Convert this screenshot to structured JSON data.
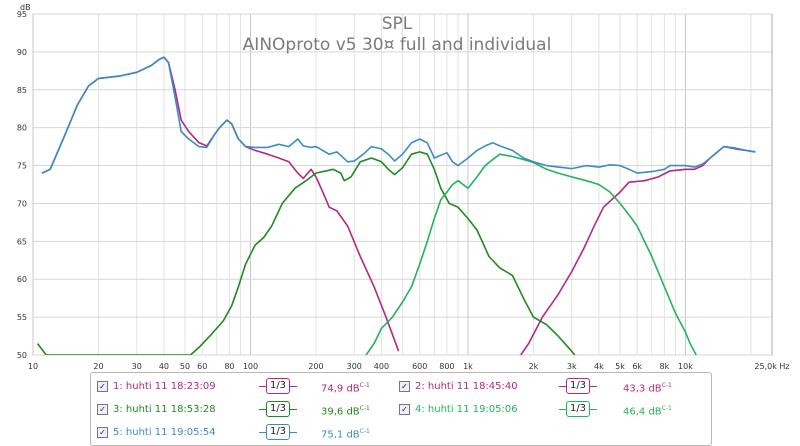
{
  "title": "SPL",
  "subtitle": "AINOproto v5 30¤ full and individual",
  "chart_data": {
    "type": "line",
    "title": "SPL",
    "subtitle": "AINOproto v5 30¤ full and individual",
    "xscale": "log",
    "xlim": [
      10,
      25000
    ],
    "ylim": [
      50,
      95
    ],
    "ylabel": "dB",
    "xunit": "Hz",
    "grid": true,
    "xticks": [
      {
        "v": 10,
        "label": "10"
      },
      {
        "v": 20,
        "label": "20"
      },
      {
        "v": 30,
        "label": "30"
      },
      {
        "v": 40,
        "label": "40"
      },
      {
        "v": 50,
        "label": "50"
      },
      {
        "v": 60,
        "label": "60"
      },
      {
        "v": 80,
        "label": "80"
      },
      {
        "v": 100,
        "label": "100"
      },
      {
        "v": 200,
        "label": "200"
      },
      {
        "v": 300,
        "label": "300"
      },
      {
        "v": 400,
        "label": "400"
      },
      {
        "v": 600,
        "label": "600"
      },
      {
        "v": 800,
        "label": "800"
      },
      {
        "v": 1000,
        "label": "1k"
      },
      {
        "v": 2000,
        "label": "2k"
      },
      {
        "v": 3000,
        "label": "3k"
      },
      {
        "v": 4000,
        "label": "4k"
      },
      {
        "v": 5000,
        "label": "5k"
      },
      {
        "v": 6000,
        "label": "6k"
      },
      {
        "v": 8000,
        "label": "8k"
      },
      {
        "v": 10000,
        "label": "10k"
      },
      {
        "v": 25000,
        "label": "25,0k Hz"
      }
    ],
    "yticks": [
      50,
      55,
      60,
      65,
      70,
      75,
      80,
      85,
      90,
      95
    ],
    "series": [
      {
        "name": "1: huhti 11 18:23:09",
        "color": "#b5287d",
        "smoothing": "1/3",
        "level": "74,9 dB",
        "points": [
          [
            11,
            74
          ],
          [
            12,
            74.5
          ],
          [
            14,
            79
          ],
          [
            16,
            83
          ],
          [
            18,
            85.5
          ],
          [
            20,
            86.5
          ],
          [
            25,
            86.8
          ],
          [
            30,
            87.3
          ],
          [
            35,
            88.2
          ],
          [
            38,
            89
          ],
          [
            40,
            89.3
          ],
          [
            42,
            88.6
          ],
          [
            45,
            85
          ],
          [
            48,
            81
          ],
          [
            52,
            79.5
          ],
          [
            58,
            78
          ],
          [
            63,
            77.6
          ],
          [
            68,
            79
          ],
          [
            72,
            80
          ],
          [
            78,
            81
          ],
          [
            82,
            80.5
          ],
          [
            88,
            78.5
          ],
          [
            95,
            77.5
          ],
          [
            105,
            77
          ],
          [
            120,
            76.5
          ],
          [
            135,
            76
          ],
          [
            150,
            75.5
          ],
          [
            165,
            74
          ],
          [
            175,
            73.3
          ],
          [
            190,
            74.5
          ],
          [
            200,
            73.5
          ],
          [
            215,
            71.5
          ],
          [
            230,
            69.5
          ],
          [
            250,
            69
          ],
          [
            280,
            67
          ],
          [
            320,
            63
          ],
          [
            370,
            59
          ],
          [
            420,
            55
          ],
          [
            480,
            50.5
          ]
        ]
      },
      {
        "name": "2: huhti 11 18:45:40",
        "color": "#b5287d",
        "smoothing": "1/3",
        "level": "43,3 dB",
        "points": [
          [
            1750,
            50
          ],
          [
            1900,
            51.5
          ],
          [
            2200,
            55
          ],
          [
            2600,
            58
          ],
          [
            3000,
            61
          ],
          [
            3400,
            64
          ],
          [
            3800,
            67
          ],
          [
            4200,
            69.5
          ],
          [
            5000,
            71.5
          ],
          [
            5500,
            72.8
          ],
          [
            6500,
            73
          ],
          [
            7500,
            73.5
          ],
          [
            8500,
            74.3
          ],
          [
            10000,
            74.5
          ],
          [
            11000,
            74.5
          ],
          [
            12000,
            75
          ],
          [
            13000,
            76
          ],
          [
            15000,
            77.5
          ],
          [
            17000,
            77.2
          ],
          [
            19000,
            77
          ],
          [
            21000,
            76.8
          ]
        ]
      },
      {
        "name": "3: huhti 11 18:53:28",
        "color": "#1f8a1f",
        "smoothing": "1/3",
        "level": "39,6 dB",
        "points": [
          [
            10.5,
            51.5
          ],
          [
            11.5,
            50
          ],
          [
            53,
            50
          ],
          [
            58,
            51
          ],
          [
            65,
            52.5
          ],
          [
            75,
            54.5
          ],
          [
            82,
            56.5
          ],
          [
            88,
            59
          ],
          [
            95,
            62
          ],
          [
            105,
            64.5
          ],
          [
            115,
            65.5
          ],
          [
            125,
            67
          ],
          [
            140,
            70
          ],
          [
            160,
            72
          ],
          [
            180,
            73
          ],
          [
            200,
            74
          ],
          [
            240,
            74.5
          ],
          [
            260,
            74
          ],
          [
            270,
            73
          ],
          [
            290,
            73.5
          ],
          [
            320,
            75.5
          ],
          [
            360,
            76
          ],
          [
            400,
            75.5
          ],
          [
            430,
            74.5
          ],
          [
            460,
            73.8
          ],
          [
            500,
            74.7
          ],
          [
            550,
            76.5
          ],
          [
            600,
            76.8
          ],
          [
            650,
            76.5
          ],
          [
            700,
            74.5
          ],
          [
            750,
            72
          ],
          [
            820,
            70
          ],
          [
            900,
            69.5
          ],
          [
            1000,
            68
          ],
          [
            1100,
            66.5
          ],
          [
            1250,
            63
          ],
          [
            1400,
            61.5
          ],
          [
            1600,
            60.5
          ],
          [
            1800,
            57.5
          ],
          [
            2000,
            55
          ],
          [
            2300,
            54
          ],
          [
            2600,
            52.5
          ],
          [
            3000,
            50.5
          ],
          [
            3100,
            50
          ]
        ]
      },
      {
        "name": "4: huhti 11 19:05:06",
        "color": "#22b45a",
        "smoothing": "1/3",
        "level": "46,4 dB",
        "points": [
          [
            340,
            50
          ],
          [
            370,
            51.5
          ],
          [
            400,
            53.5
          ],
          [
            450,
            55
          ],
          [
            500,
            57
          ],
          [
            550,
            59
          ],
          [
            600,
            62
          ],
          [
            650,
            65
          ],
          [
            700,
            68
          ],
          [
            750,
            70.5
          ],
          [
            800,
            71.5
          ],
          [
            850,
            72.5
          ],
          [
            900,
            73
          ],
          [
            950,
            72.5
          ],
          [
            1000,
            72
          ],
          [
            1100,
            73.5
          ],
          [
            1200,
            75
          ],
          [
            1300,
            75.8
          ],
          [
            1400,
            76.5
          ],
          [
            1600,
            76.2
          ],
          [
            1800,
            75.8
          ],
          [
            2000,
            75.4
          ],
          [
            2300,
            74.5
          ],
          [
            2600,
            74
          ],
          [
            3000,
            73.5
          ],
          [
            3500,
            73
          ],
          [
            4000,
            72.5
          ],
          [
            4500,
            71.5
          ],
          [
            5000,
            70
          ],
          [
            5500,
            68.5
          ],
          [
            6000,
            67
          ],
          [
            7000,
            63
          ],
          [
            8000,
            59
          ],
          [
            9000,
            55.5
          ],
          [
            10000,
            53
          ],
          [
            10500,
            51.5
          ],
          [
            11200,
            50
          ]
        ]
      },
      {
        "name": "5: huhti 11 19:05:54",
        "color": "#3a8dc4",
        "smoothing": "1/3",
        "level": "75,1 dB",
        "points": [
          [
            11,
            74
          ],
          [
            12,
            74.5
          ],
          [
            14,
            79
          ],
          [
            16,
            83
          ],
          [
            18,
            85.5
          ],
          [
            20,
            86.5
          ],
          [
            25,
            86.8
          ],
          [
            30,
            87.3
          ],
          [
            35,
            88.2
          ],
          [
            38,
            89
          ],
          [
            40,
            89.3
          ],
          [
            42,
            88.6
          ],
          [
            45,
            84
          ],
          [
            48,
            79.5
          ],
          [
            52,
            78.5
          ],
          [
            58,
            77.5
          ],
          [
            63,
            77.4
          ],
          [
            68,
            79
          ],
          [
            72,
            80
          ],
          [
            78,
            81
          ],
          [
            82,
            80.5
          ],
          [
            88,
            78.5
          ],
          [
            95,
            77.5
          ],
          [
            105,
            77.4
          ],
          [
            120,
            77.4
          ],
          [
            135,
            77.8
          ],
          [
            150,
            77.5
          ],
          [
            165,
            78.5
          ],
          [
            175,
            77.6
          ],
          [
            190,
            77.4
          ],
          [
            200,
            77.5
          ],
          [
            230,
            76.5
          ],
          [
            250,
            76.8
          ],
          [
            280,
            75.5
          ],
          [
            300,
            75.6
          ],
          [
            330,
            76.5
          ],
          [
            360,
            77.5
          ],
          [
            400,
            77.2
          ],
          [
            430,
            76.5
          ],
          [
            460,
            75.6
          ],
          [
            500,
            76.5
          ],
          [
            550,
            78
          ],
          [
            600,
            78.5
          ],
          [
            650,
            78
          ],
          [
            700,
            76
          ],
          [
            800,
            76.7
          ],
          [
            850,
            75.5
          ],
          [
            900,
            75
          ],
          [
            1000,
            76
          ],
          [
            1100,
            77
          ],
          [
            1200,
            77.6
          ],
          [
            1300,
            78
          ],
          [
            1400,
            77.6
          ],
          [
            1600,
            77
          ],
          [
            1800,
            76
          ],
          [
            2000,
            75.5
          ],
          [
            2300,
            75
          ],
          [
            2600,
            74.8
          ],
          [
            3000,
            74.6
          ],
          [
            3500,
            75
          ],
          [
            4000,
            74.8
          ],
          [
            4500,
            75.1
          ],
          [
            5000,
            75
          ],
          [
            5500,
            74.5
          ],
          [
            6000,
            74
          ],
          [
            7000,
            74.2
          ],
          [
            8000,
            74.5
          ],
          [
            8500,
            75
          ],
          [
            10000,
            75
          ],
          [
            11000,
            74.8
          ],
          [
            12000,
            75.2
          ],
          [
            13000,
            76
          ],
          [
            15000,
            77.5
          ],
          [
            17000,
            77.3
          ],
          [
            19000,
            77
          ],
          [
            21000,
            76.8
          ]
        ]
      }
    ]
  },
  "legend": {
    "items": [
      {
        "label": "1: huhti 11 18:23:09",
        "smoothing": "1/3",
        "level": "74,9 dB",
        "unit_sup": "C-1",
        "color": "#b5287d",
        "checked": "✓"
      },
      {
        "label": "2: huhti 11 18:45:40",
        "smoothing": "1/3",
        "level": "43,3 dB",
        "unit_sup": "C-1",
        "color": "#b5287d",
        "checked": "✓"
      },
      {
        "label": "3: huhti 11 18:53:28",
        "smoothing": "1/3",
        "level": "39,6 dB",
        "unit_sup": "C-1",
        "color": "#1f8a1f",
        "checked": "✓"
      },
      {
        "label": "4: huhti 11 19:05:06",
        "smoothing": "1/3",
        "level": "46,4 dB",
        "unit_sup": "C-1",
        "color": "#22b45a",
        "checked": "✓"
      },
      {
        "label": "5: huhti 11 19:05:54",
        "smoothing": "1/3",
        "level": "75,1 dB",
        "unit_sup": "C-1",
        "color": "#3a8dc4",
        "checked": "✓"
      }
    ]
  }
}
